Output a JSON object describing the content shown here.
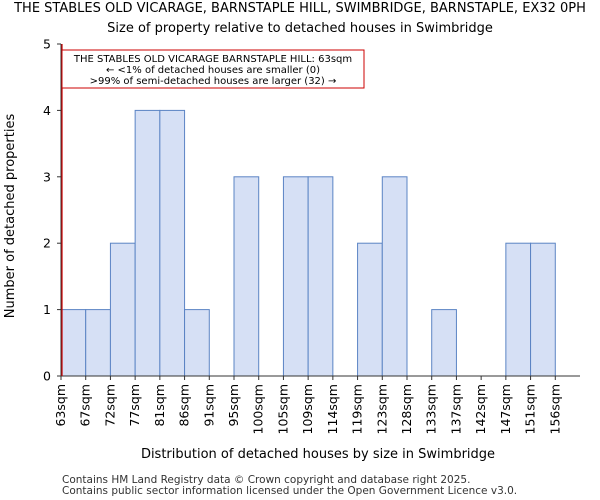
{
  "chart_data": {
    "type": "bar",
    "title": "THE STABLES OLD VICARAGE, BARNSTAPLE HILL, SWIMBRIDGE, BARNSTAPLE, EX32 0PH",
    "subtitle": "Size of property relative to detached houses in Swimbridge",
    "xlabel": "Distribution of detached houses by size in Swimbridge",
    "ylabel": "Number of detached properties",
    "categories": [
      "63sqm",
      "67sqm",
      "72sqm",
      "77sqm",
      "81sqm",
      "86sqm",
      "91sqm",
      "95sqm",
      "100sqm",
      "105sqm",
      "109sqm",
      "114sqm",
      "119sqm",
      "123sqm",
      "128sqm",
      "133sqm",
      "137sqm",
      "142sqm",
      "147sqm",
      "151sqm",
      "156sqm"
    ],
    "values": [
      1,
      1,
      2,
      4,
      4,
      1,
      0,
      3,
      0,
      3,
      3,
      0,
      2,
      3,
      0,
      1,
      0,
      0,
      2,
      2,
      0
    ],
    "ylim": [
      0,
      5
    ],
    "yticks": [
      "0",
      "1",
      "2",
      "3",
      "4",
      "5"
    ],
    "grid": false,
    "marker_category_index": 0,
    "annotation": {
      "line1": "THE STABLES OLD VICARAGE BARNSTAPLE HILL: 63sqm",
      "line2": "← <1% of detached houses are smaller (0)",
      "line3": ">99% of semi-detached houses are larger (32) →"
    },
    "colors": {
      "bar_fill": "#d6e0f5",
      "bar_stroke": "#5b84c4",
      "marker": "#cc0000",
      "annotation_border": "#cc0000"
    }
  },
  "footer": {
    "line1": "Contains HM Land Registry data © Crown copyright and database right 2025.",
    "line2": "Contains public sector information licensed under the Open Government Licence v3.0."
  }
}
